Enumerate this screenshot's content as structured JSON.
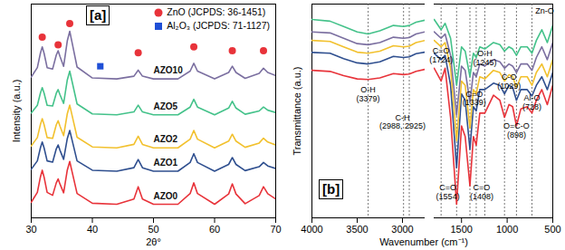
{
  "chart_data": [
    {
      "type": "line",
      "title": "[a]",
      "x_label": "2θ°",
      "y_label": "Intensity (a.u.)",
      "x": [
        30,
        31,
        31.5,
        31.8,
        32.1,
        32.6,
        33.5,
        34.1,
        34.4,
        34.7,
        35.3,
        35.9,
        36.3,
        36.7,
        37.5,
        40,
        44,
        46.8,
        47.5,
        48.2,
        50,
        54,
        56,
        56.6,
        57.2,
        60,
        62.3,
        62.9,
        63.5,
        65,
        67.3,
        68,
        68.7,
        70
      ],
      "series": [
        {
          "name": "AZO0",
          "color": "#e8333a",
          "values": [
            8,
            13.1,
            21,
            24.5,
            21,
            13.1,
            11.6,
            18,
            20,
            17.4,
            12.9,
            24.6,
            29,
            23.5,
            12.5,
            7.5,
            7,
            9.7,
            16,
            9.7,
            7,
            7,
            12.5,
            18,
            12.5,
            7,
            12.3,
            17.5,
            12.3,
            7.3,
            11.5,
            16,
            12.4,
            9.7
          ]
        },
        {
          "name": "AZO1",
          "color": "#2f4f8f",
          "values": [
            25,
            29.3,
            36,
            39,
            36,
            29.3,
            28.7,
            35.5,
            37.5,
            34.8,
            30.1,
            40.8,
            45,
            39.8,
            29.3,
            24.5,
            24,
            25.8,
            30,
            25.8,
            24,
            24,
            28.5,
            33,
            28.5,
            24,
            27.5,
            31,
            27.5,
            24.3,
            26.3,
            28.5,
            26.7,
            25.4
          ]
        },
        {
          "name": "AZO2",
          "color": "#f2c12e",
          "values": [
            37,
            41.3,
            48,
            51,
            48,
            41.3,
            40.9,
            47.9,
            50,
            47.2,
            42.3,
            53.6,
            58,
            52.5,
            41.5,
            36.5,
            36,
            37.8,
            42,
            37.8,
            36,
            36,
            40.5,
            45,
            40.5,
            36,
            39.5,
            43,
            39.5,
            36.3,
            38.5,
            41,
            39,
            37.5
          ]
        },
        {
          "name": "AZO5",
          "color": "#44c28a",
          "values": [
            54,
            57.9,
            64.2,
            67,
            64.2,
            57.9,
            57.6,
            64.1,
            66,
            63.4,
            58.9,
            71,
            75.5,
            69.9,
            58.6,
            53.5,
            53,
            54.5,
            58,
            54.5,
            53,
            53,
            57,
            61,
            57,
            53,
            56.5,
            60,
            56.5,
            53.3,
            55,
            57,
            55.4,
            54.2
          ]
        },
        {
          "name": "AZO10",
          "color": "#7b6fa0",
          "values": [
            72.5,
            77.3,
            84.7,
            88,
            84.7,
            77.3,
            76.6,
            83.8,
            86,
            83.1,
            78,
            91.1,
            96,
            89.9,
            77.6,
            72,
            71.5,
            72.9,
            76,
            72.9,
            71.5,
            71.5,
            75.5,
            79.5,
            75.5,
            71.5,
            74.8,
            78,
            74.8,
            71.8,
            74.3,
            77,
            74.8,
            73.2
          ]
        },
        {
          "name": "ZnO (JCPDS: 36-1451)",
          "type": "scatter",
          "marker": "circle",
          "color": "#e8333a",
          "x": [
            31.8,
            34.4,
            36.3,
            47.5,
            56.6,
            62.9,
            68
          ],
          "values": [
            93,
            89,
            100,
            85,
            88,
            86,
            86
          ]
        },
        {
          "name": "Al₂O₃ (JCPDS: 71-1127)",
          "type": "scatter",
          "marker": "square",
          "color": "#1f4fd6",
          "x": [
            41.3
          ],
          "values": [
            78
          ]
        }
      ],
      "xlim": [
        30,
        70
      ],
      "ylim": [
        0,
        110
      ],
      "xticks": [
        30,
        40,
        50,
        60,
        70
      ],
      "tick_labels": "x",
      "legend": "top-right"
    },
    {
      "type": "line",
      "title": "[b]",
      "x_label": "Wavenumber (cm⁻¹)",
      "y_label": "Transmittance (a.u.)",
      "x": [
        4000,
        3800,
        3650,
        3500,
        3379,
        3250,
        3100,
        2988,
        2925,
        2850,
        2750,
        1800,
        1724,
        1680,
        1620,
        1554,
        1500,
        1460,
        1408,
        1370,
        1339,
        1300,
        1245,
        1150,
        1080,
        1029,
        980,
        940,
        898,
        850,
        780,
        728,
        680,
        620,
        560,
        500
      ],
      "series": [
        {
          "color": "#e8333a",
          "values": [
            69,
            68.5,
            66.5,
            65,
            64.7,
            65.5,
            67.5,
            67,
            67.3,
            68.5,
            69.5,
            70,
            64,
            70,
            47,
            6.4,
            43,
            38,
            15,
            38,
            34,
            49,
            49,
            57.4,
            55,
            47,
            53,
            52,
            43,
            51,
            52,
            49,
            55,
            60,
            53,
            62
          ]
        },
        {
          "color": "#2f4f8f",
          "values": [
            77.4,
            77,
            74.5,
            72.5,
            72,
            73,
            75.5,
            75,
            75.3,
            76.8,
            77.5,
            77,
            74,
            76,
            62,
            23.4,
            58,
            55,
            32,
            52,
            50,
            60,
            60,
            63,
            62,
            58,
            62,
            61,
            55,
            60,
            60,
            57,
            62,
            66,
            60,
            68
          ]
        },
        {
          "color": "#f2c12e",
          "values": [
            83,
            82.5,
            80,
            77.5,
            77,
            78,
            80.5,
            80,
            80.3,
            82,
            83,
            83,
            80,
            82,
            70,
            36,
            64,
            62,
            42,
            60,
            58,
            66,
            65,
            69,
            68,
            64,
            67,
            66,
            61,
            66,
            66,
            62,
            68,
            72,
            66,
            74
          ]
        },
        {
          "color": "#7b6fa0",
          "values": [
            87,
            86.5,
            84,
            81.5,
            81,
            82,
            84.5,
            84,
            84.3,
            86,
            87,
            87,
            84,
            86,
            76,
            48,
            71,
            69,
            54,
            68,
            66,
            72,
            71,
            74,
            73,
            70,
            72,
            71,
            68,
            72,
            72,
            69,
            75,
            80,
            74,
            82
          ]
        },
        {
          "color": "#44c28a",
          "values": [
            92.8,
            92,
            89.5,
            87,
            86,
            87.5,
            90,
            89.5,
            90,
            91.5,
            92.5,
            92.8,
            88,
            91,
            84,
            62,
            80,
            78,
            66,
            77,
            75,
            80,
            79,
            82,
            81,
            78,
            80,
            79,
            76,
            80,
            80,
            77,
            83,
            88,
            82,
            90
          ]
        }
      ],
      "xlim": [
        4000,
        500
      ],
      "xbreak": [
        2750,
        1800
      ],
      "ylim": [
        0,
        100
      ],
      "xticks": [
        4000,
        3500,
        3000,
        1500,
        1000,
        500
      ],
      "tick_labels": "x",
      "vlines": [
        3379,
        2988,
        2925,
        1724,
        1554,
        1408,
        1339,
        1245,
        1029,
        898,
        728
      ],
      "annotations": [
        {
          "text": "O-H\n(3379)",
          "x": 3379,
          "y": 58
        },
        {
          "text": "C-H\n(2988, 2925)",
          "x": 3000,
          "y": 45
        },
        {
          "text": "C=O\n(1724)",
          "x": 1724,
          "y": 76
        },
        {
          "text": "O-H\n(1245)",
          "x": 1245,
          "y": 75
        },
        {
          "text": "C=O\n(1339)",
          "x": 1360,
          "y": 56
        },
        {
          "text": "C-O\n(1029)",
          "x": 980,
          "y": 64
        },
        {
          "text": "Al-O\n(728)",
          "x": 728,
          "y": 54
        },
        {
          "text": "O=C-O\n(898)",
          "x": 898,
          "y": 41
        },
        {
          "text": "C=O\n(1554)",
          "x": 1650,
          "y": 12
        },
        {
          "text": "C=O\n(1408)",
          "x": 1280,
          "y": 12
        },
        {
          "text": "Zn-O",
          "x": 590,
          "y": 97
        }
      ]
    }
  ]
}
